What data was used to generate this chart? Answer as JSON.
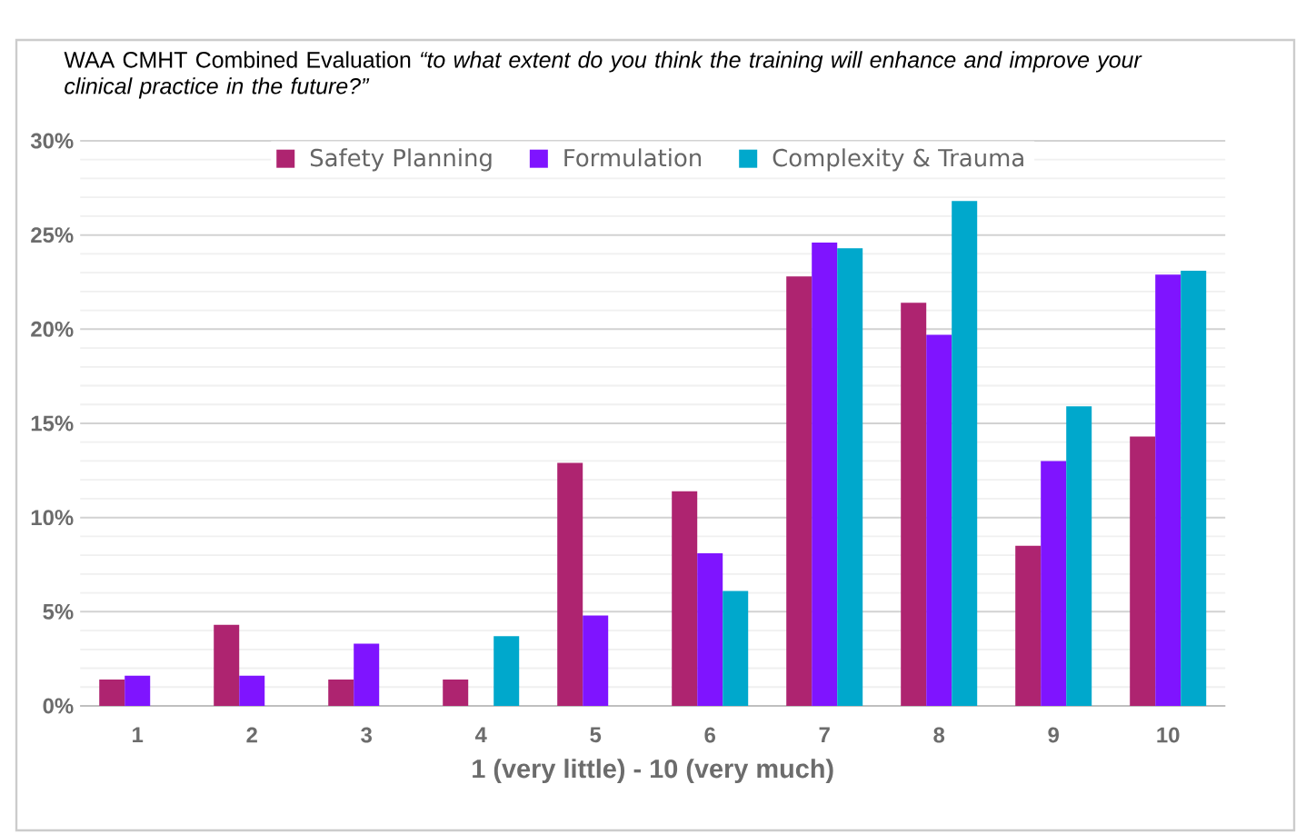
{
  "chart_data": {
    "type": "bar",
    "title": "WAA CMHT Combined Evaluation *“to what extent do you think the training will enhance and improve your clinical practice in the future?”*",
    "xlabel": "1 (very little) - 10 (very much)",
    "categories": [
      "1",
      "2",
      "3",
      "4",
      "5",
      "6",
      "7",
      "8",
      "9",
      "10"
    ],
    "series": [
      {
        "name": "Safety Planning",
        "color": "#ae2470",
        "values": [
          1.4,
          4.3,
          1.4,
          1.4,
          12.9,
          11.4,
          22.8,
          21.4,
          8.5,
          14.3
        ]
      },
      {
        "name": "Formulation",
        "color": "#7f14ff",
        "values": [
          1.6,
          1.6,
          3.3,
          null,
          4.8,
          8.1,
          24.6,
          19.7,
          13.0,
          22.9
        ]
      },
      {
        "name": "Complexity & Trauma",
        "color": "#00a8cc",
        "values": [
          null,
          null,
          null,
          3.7,
          null,
          6.1,
          24.3,
          26.8,
          15.9,
          23.1
        ]
      }
    ],
    "ylim": [
      0,
      30
    ],
    "yticks": [
      {
        "value": 0,
        "label": "0%"
      },
      {
        "value": 5,
        "label": "5%"
      },
      {
        "value": 10,
        "label": "10%"
      },
      {
        "value": 15,
        "label": "15%"
      },
      {
        "value": 20,
        "label": "20%"
      },
      {
        "value": 25,
        "label": "25%"
      },
      {
        "value": 30,
        "label": "30%"
      }
    ],
    "grid": "y",
    "legend": "top"
  }
}
